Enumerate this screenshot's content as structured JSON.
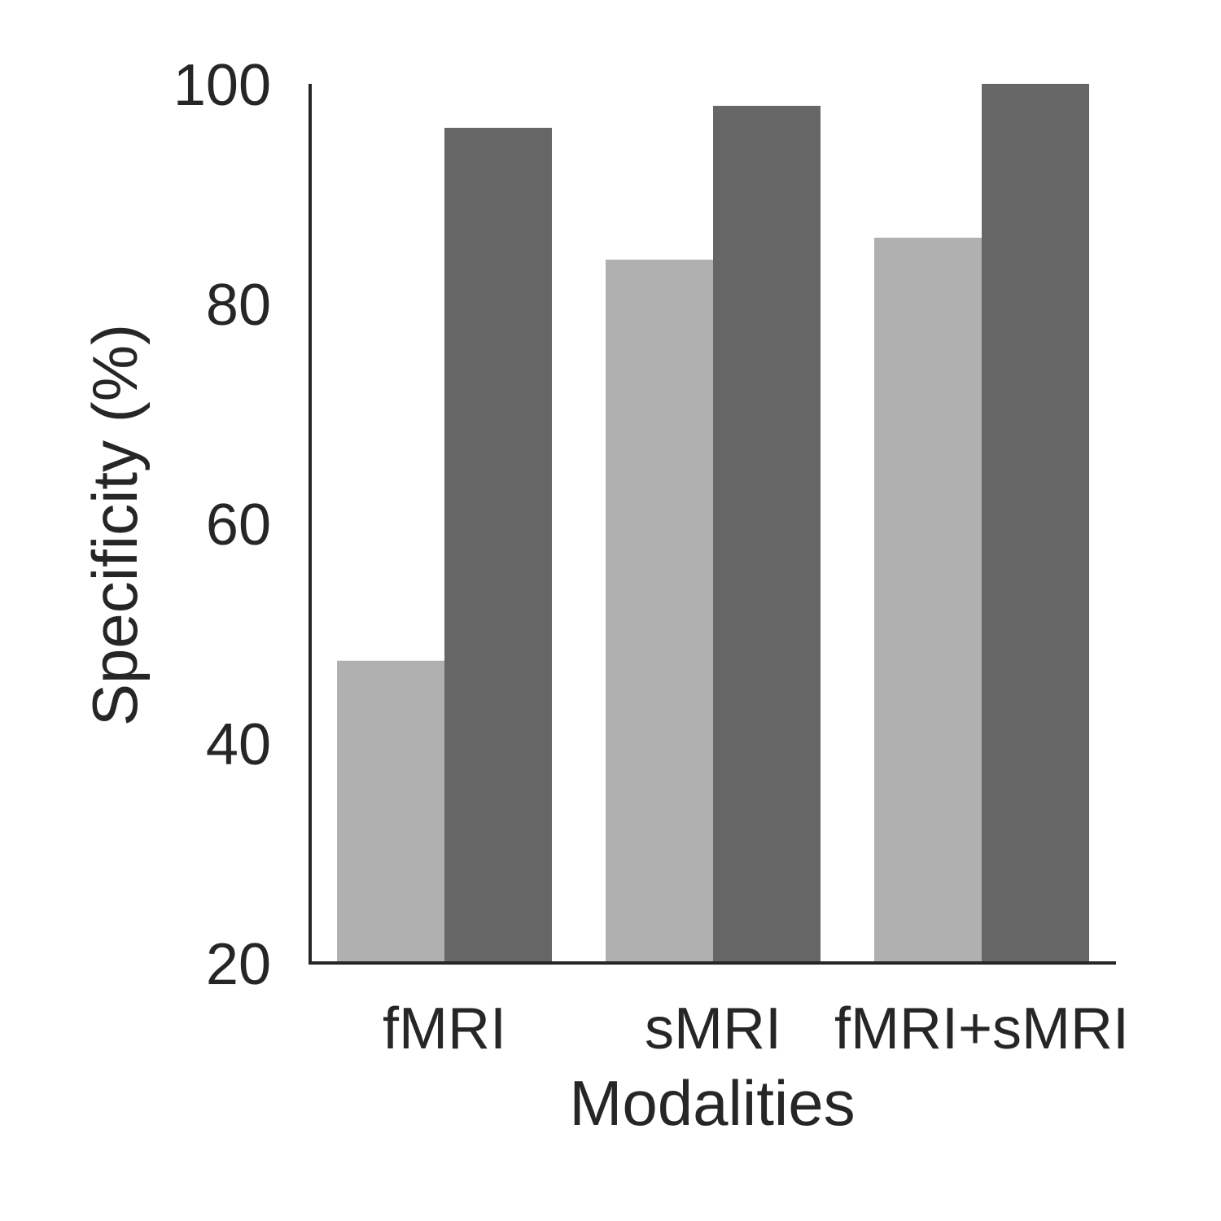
{
  "chart_data": {
    "type": "bar",
    "categories": [
      "fMRI",
      "sMRI",
      "fMRI+sMRI"
    ],
    "series": [
      {
        "values": [
          47.5,
          84.0,
          86.0
        ],
        "color": "#b0b0b0"
      },
      {
        "values": [
          96.0,
          98.0,
          100.0
        ],
        "color": "#666666"
      }
    ],
    "xlabel": "Modalities",
    "ylabel": "Specificity (%)",
    "ylim": [
      20,
      100
    ],
    "yticks": [
      20,
      40,
      60,
      80,
      100
    ],
    "grid": false,
    "axis_color": "#262626"
  }
}
